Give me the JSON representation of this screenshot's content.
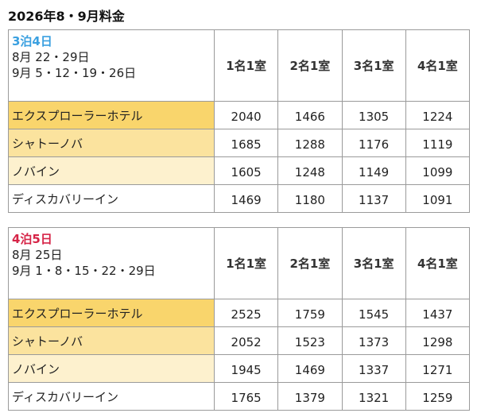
{
  "title": "2026年8・9月料金",
  "colors": {
    "plan_a": "#3aa0e0",
    "plan_b": "#d62447",
    "row_fills": [
      "#f9d56c",
      "#fbe39e",
      "#fdf1ce",
      "#ffffff"
    ]
  },
  "headers": [
    "1名1室",
    "2名1室",
    "3名1室",
    "4名1室"
  ],
  "tables": [
    {
      "plan": "3泊4日",
      "dates": [
        "8月 22・29日",
        "9月 5・12・19・26日"
      ],
      "rows": [
        {
          "hotel": "エクスプローラーホテル",
          "prices": [
            "2040",
            "1466",
            "1305",
            "1224"
          ]
        },
        {
          "hotel": "シャトーノバ",
          "prices": [
            "1685",
            "1288",
            "1176",
            "1119"
          ]
        },
        {
          "hotel": "ノバイン",
          "prices": [
            "1605",
            "1248",
            "1149",
            "1099"
          ]
        },
        {
          "hotel": "ディスカバリーイン",
          "prices": [
            "1469",
            "1180",
            "1137",
            "1091"
          ]
        }
      ]
    },
    {
      "plan": "4泊5日",
      "dates": [
        "8月 25日",
        "9月 1・8・15・22・29日"
      ],
      "rows": [
        {
          "hotel": "エクスプローラーホテル",
          "prices": [
            "2525",
            "1759",
            "1545",
            "1437"
          ]
        },
        {
          "hotel": "シャトーノバ",
          "prices": [
            "2052",
            "1523",
            "1373",
            "1298"
          ]
        },
        {
          "hotel": "ノバイン",
          "prices": [
            "1945",
            "1469",
            "1337",
            "1271"
          ]
        },
        {
          "hotel": "ディスカバリーイン",
          "prices": [
            "1765",
            "1379",
            "1321",
            "1259"
          ]
        }
      ]
    }
  ]
}
